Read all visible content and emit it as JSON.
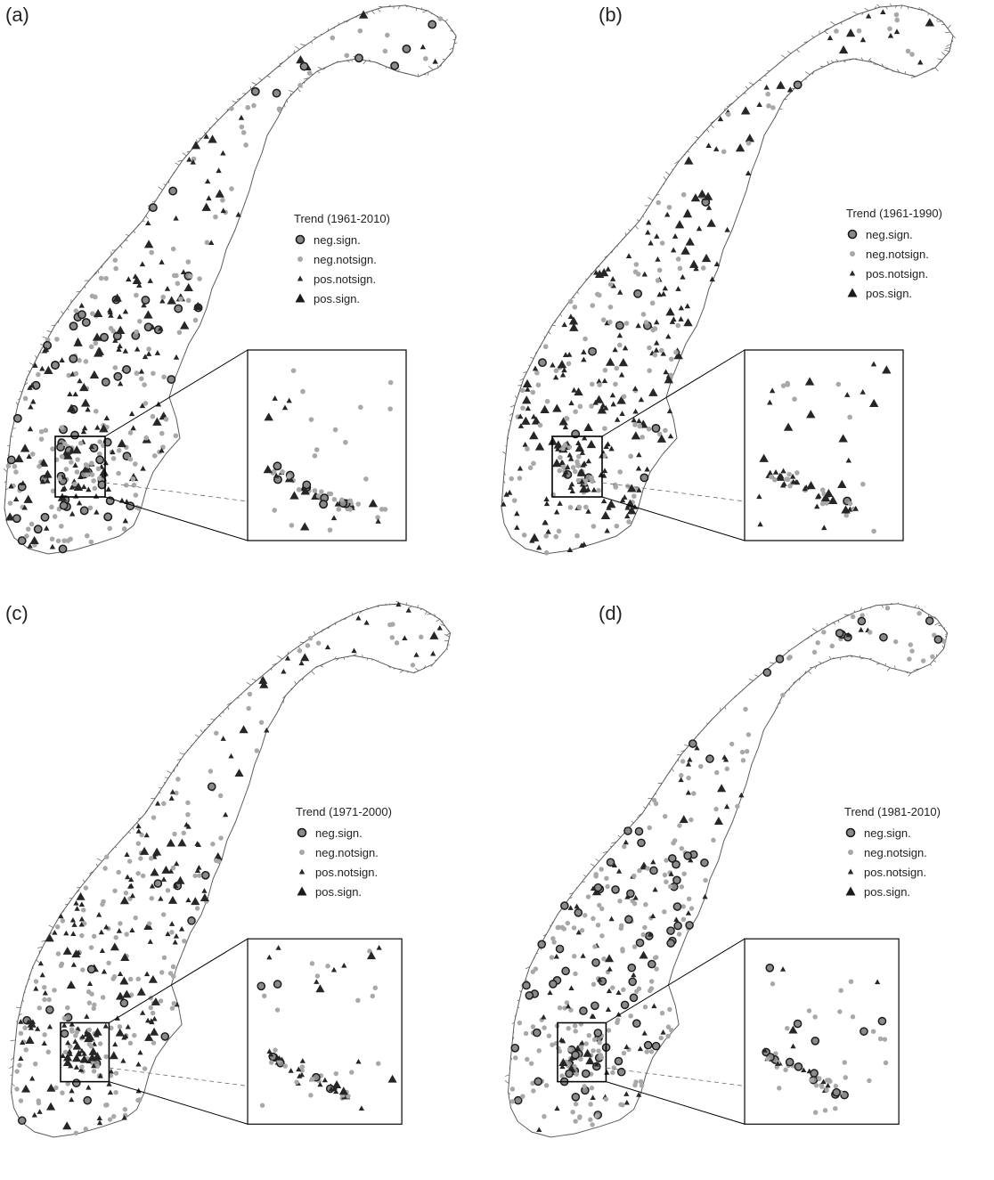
{
  "legend_items": [
    {
      "key": "neg_sign",
      "label": "neg.sign.",
      "symbol": "circle-large"
    },
    {
      "key": "neg_notsign",
      "label": "neg.notsign.",
      "symbol": "circle-small"
    },
    {
      "key": "pos_notsign",
      "label": "pos.notsign.",
      "symbol": "triangle-small"
    },
    {
      "key": "pos_sign",
      "label": "pos.sign.",
      "symbol": "triangle-large"
    }
  ],
  "colors": {
    "neg_sign_fill": "#8a8a8a",
    "neg_sign_stroke": "#1a1a1a",
    "neg_notsign_fill": "#a8a8a8",
    "pos_fill": "#262626",
    "coast": "#5a5a5a"
  },
  "panels": [
    {
      "id": "a",
      "label": "(a)",
      "legend_title": "Trend (1961-2010)",
      "mix": {
        "neg_sign": 0.18,
        "neg_notsign": 0.44,
        "pos_notsign": 0.28,
        "pos_sign": 0.1
      }
    },
    {
      "id": "b",
      "label": "(b)",
      "legend_title": "Trend (1961-1990)",
      "mix": {
        "neg_sign": 0.03,
        "neg_notsign": 0.3,
        "pos_notsign": 0.45,
        "pos_sign": 0.22
      }
    },
    {
      "id": "c",
      "label": "(c)",
      "legend_title": "Trend (1971-2000)",
      "mix": {
        "neg_sign": 0.04,
        "neg_notsign": 0.44,
        "pos_notsign": 0.38,
        "pos_sign": 0.14
      }
    },
    {
      "id": "d",
      "label": "(d)",
      "legend_title": "Trend (1981-2010)",
      "mix": {
        "neg_sign": 0.2,
        "neg_notsign": 0.56,
        "pos_notsign": 0.2,
        "pos_sign": 0.04
      }
    }
  ]
}
